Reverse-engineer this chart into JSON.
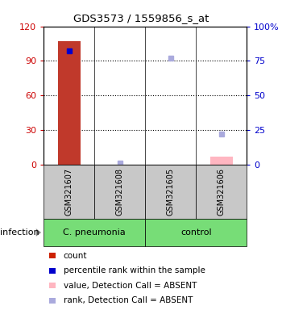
{
  "title": "GDS3573 / 1559856_s_at",
  "samples": [
    "GSM321607",
    "GSM321608",
    "GSM321605",
    "GSM321606"
  ],
  "groups": [
    "C. pneumonia",
    "C. pneumonia",
    "control",
    "control"
  ],
  "ylim_left": [
    0,
    120
  ],
  "ylim_right": [
    0,
    100
  ],
  "yticks_left": [
    0,
    30,
    60,
    90,
    120
  ],
  "ytick_labels_left": [
    "0",
    "30",
    "60",
    "90",
    "120"
  ],
  "yticks_right": [
    0,
    25,
    50,
    75,
    100
  ],
  "ytick_labels_right": [
    "0",
    "25",
    "50",
    "75",
    "100%"
  ],
  "bar_width": 0.45,
  "count_bars": {
    "GSM321607": 107,
    "GSM321608": 0,
    "GSM321605": 0,
    "GSM321606": 7
  },
  "count_bar_color_present": "#C0392B",
  "count_bar_color_absent": "#FFB6C1",
  "rank_markers": {
    "GSM321607": 82,
    "GSM321608": 1,
    "GSM321605": 77,
    "GSM321606": 22
  },
  "rank_marker_color_present": "#0000CD",
  "rank_marker_color_absent": "#AAAADD",
  "detection": {
    "GSM321608": "ABSENT",
    "GSM321605": "ABSENT",
    "GSM321606": "ABSENT"
  },
  "legend_items": [
    {
      "label": "count",
      "color": "#CC2200"
    },
    {
      "label": "percentile rank within the sample",
      "color": "#0000CC"
    },
    {
      "label": "value, Detection Call = ABSENT",
      "color": "#FFB6C1"
    },
    {
      "label": "rank, Detection Call = ABSENT",
      "color": "#AAAADD"
    }
  ],
  "label_color_left": "#CC0000",
  "label_color_right": "#0000CC",
  "group_label": "infection",
  "group_spans": [
    [
      0,
      1,
      "C. pneumonia"
    ],
    [
      2,
      3,
      "control"
    ]
  ],
  "group_box_color": "#77DD77",
  "sample_box_color": "#C8C8C8",
  "dotted_lines_pct": [
    25,
    50,
    75
  ]
}
